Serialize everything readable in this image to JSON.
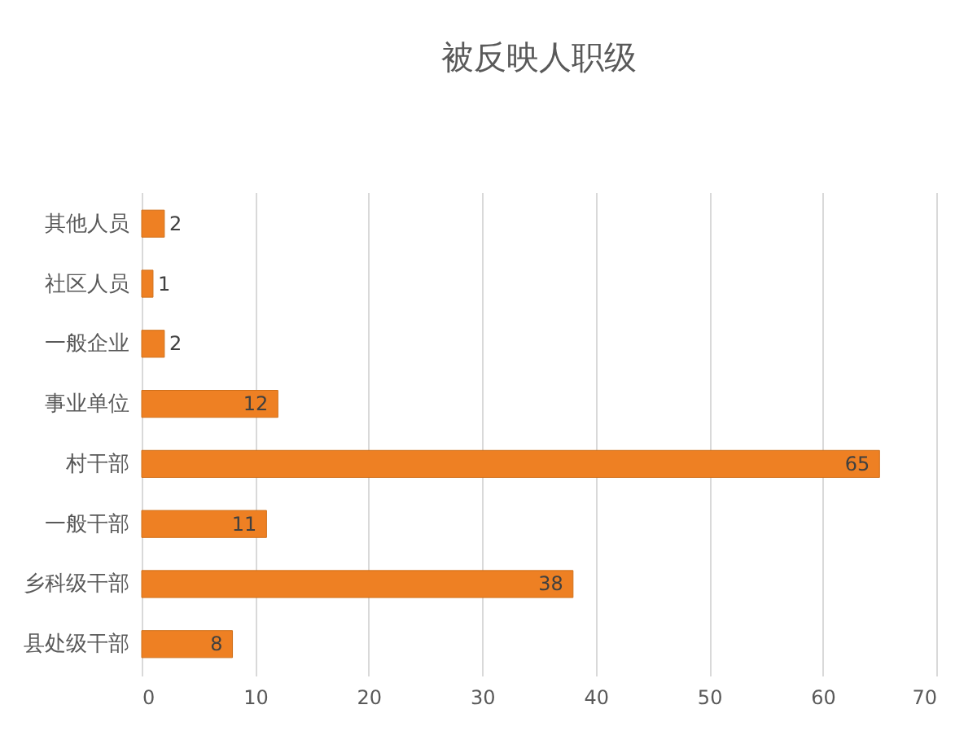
{
  "chart_data": {
    "type": "bar",
    "orientation": "horizontal",
    "title": "被反映人职级",
    "categories": [
      "其他人员",
      "社区人员",
      "一般企业",
      "事业单位",
      "村干部",
      "一般干部",
      "乡科级干部",
      "县处级干部"
    ],
    "values": [
      2,
      1,
      2,
      12,
      65,
      11,
      38,
      8
    ],
    "color": "#ee8023",
    "xlim": [
      0,
      70
    ],
    "xticks": [
      0,
      10,
      20,
      30,
      40,
      50,
      60,
      70
    ],
    "grid": "x",
    "data_labels": true
  }
}
